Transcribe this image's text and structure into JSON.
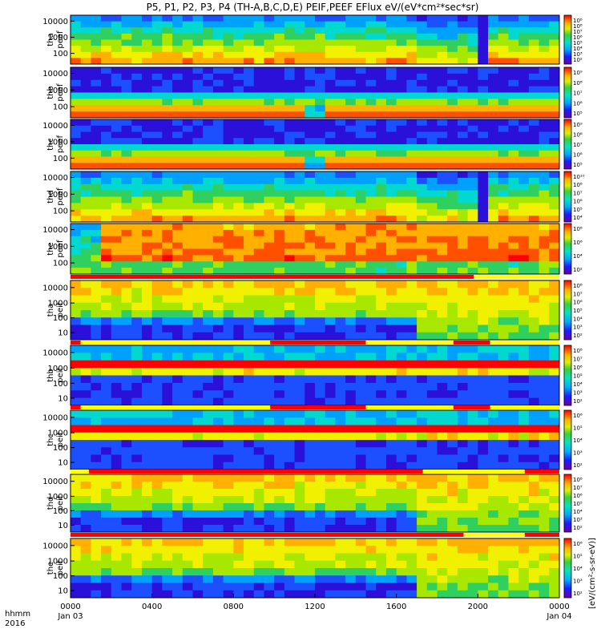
{
  "chart_data": {
    "type": "heatmap",
    "title": "P5, P1, P2, P3, P4 (TH-A,B,C,D,E) PEIF,PEEF EFlux eV/(eV*cm²*sec*sr)",
    "x_axis": {
      "label_line1": "hhmm",
      "label_line2": "2016",
      "ticks": [
        "0000",
        "0400",
        "0800",
        "1200",
        "1600",
        "2000",
        "0000"
      ],
      "tick_hours": [
        0,
        4,
        8,
        12,
        16,
        20,
        24
      ],
      "date_labels": [
        "Jan 03",
        "Jan 04"
      ],
      "range_hours": [
        0,
        24
      ]
    },
    "colorbar_label": "[eV/(cm²-s-sr-eV)]",
    "panels": [
      {
        "ylabel": [
          "tha",
          "peef"
        ],
        "yticks": [
          "10000",
          "1000",
          "100"
        ],
        "cbar_ticks": [
          "10⁸",
          "10⁸",
          "10⁷",
          "10⁶",
          "10⁵",
          "10⁴",
          "10³",
          "10²"
        ],
        "kind": "electron",
        "has_bar_below": false
      },
      {
        "ylabel": [
          "thb",
          "peef"
        ],
        "yticks": [
          "10000",
          "1000",
          "100"
        ],
        "cbar_ticks": [
          "10⁹",
          "10⁸",
          "10⁷",
          "10⁶",
          "10⁵"
        ],
        "kind": "electron_cold",
        "has_bar_below": false
      },
      {
        "ylabel": [
          "thc",
          "peef"
        ],
        "yticks": [
          "10000",
          "1000",
          "100"
        ],
        "cbar_ticks": [
          "10⁹",
          "10⁸",
          "10⁷",
          "10⁶",
          "10⁵"
        ],
        "kind": "electron_cold",
        "has_bar_below": false
      },
      {
        "ylabel": [
          "thd",
          "peef"
        ],
        "yticks": [
          "10000",
          "1000",
          "100"
        ],
        "cbar_ticks": [
          "10¹⁰",
          "10⁸",
          "10⁷",
          "10⁶",
          "10⁵",
          "10⁴"
        ],
        "kind": "electron",
        "has_bar_below": false
      },
      {
        "ylabel": [
          "the",
          "peef"
        ],
        "yticks": [
          "10000",
          "1000",
          "100"
        ],
        "cbar_ticks": [
          "10⁸",
          "10⁶",
          "10⁴",
          "10²"
        ],
        "kind": "electron_hot",
        "has_bar_below": true
      },
      {
        "ylabel": [
          "tha",
          "peif"
        ],
        "yticks": [
          "10000",
          "1000",
          "100",
          "10"
        ],
        "cbar_ticks": [
          "10⁸",
          "10⁷",
          "10⁶",
          "10⁵",
          "10⁴",
          "10³",
          "10²"
        ],
        "kind": "ion",
        "has_bar_below": true
      },
      {
        "ylabel": [
          "thb",
          "peif"
        ],
        "yticks": [
          "10000",
          "1000",
          "100",
          "10"
        ],
        "cbar_ticks": [
          "10⁸",
          "10⁷",
          "10⁶",
          "10⁵",
          "10⁴",
          "10³",
          "10²"
        ],
        "kind": "ion_band",
        "has_bar_below": true
      },
      {
        "ylabel": [
          "thc",
          "peif"
        ],
        "yticks": [
          "10000",
          "1000",
          "100",
          "10"
        ],
        "cbar_ticks": [
          "10⁶",
          "10⁵",
          "10⁴",
          "10³",
          "10²"
        ],
        "kind": "ion_band",
        "has_bar_below": true
      },
      {
        "ylabel": [
          "thd",
          "peif"
        ],
        "yticks": [
          "10000",
          "1000",
          "100",
          "10"
        ],
        "cbar_ticks": [
          "10⁸",
          "10⁷",
          "10⁶",
          "10⁵",
          "10⁴",
          "10³",
          "10²"
        ],
        "kind": "ion",
        "has_bar_below": true
      },
      {
        "ylabel": [
          "the",
          "peif"
        ],
        "yticks": [
          "10000",
          "1000",
          "100",
          "10"
        ],
        "cbar_ticks": [
          "10⁶",
          "10⁵",
          "10⁴",
          "10³",
          "10²"
        ],
        "kind": "ion",
        "has_bar_below": false
      }
    ],
    "mode_bars": [
      {
        "segments": [
          [
            0,
            19.8,
            "#ff0000"
          ],
          [
            19.8,
            24,
            "#ffff00"
          ]
        ]
      },
      {
        "segments": [
          [
            0,
            0.5,
            "#ff0000"
          ],
          [
            0.5,
            9.8,
            "#ffff00"
          ],
          [
            9.8,
            14.5,
            "#ff0000"
          ],
          [
            14.5,
            18.8,
            "#ffff00"
          ],
          [
            18.8,
            20.6,
            "#ff0000"
          ],
          [
            20.6,
            24,
            "#ffff00"
          ]
        ]
      },
      {
        "segments": [
          [
            0,
            0.5,
            "#ff0000"
          ],
          [
            0.5,
            9.8,
            "#ffff00"
          ],
          [
            9.8,
            14.5,
            "#ff0000"
          ],
          [
            14.5,
            18.8,
            "#ffff00"
          ],
          [
            18.8,
            20.6,
            "#ff0000"
          ],
          [
            20.6,
            24,
            "#ffff00"
          ]
        ]
      },
      {
        "segments": [
          [
            0,
            0.9,
            "#ffff00"
          ],
          [
            0.9,
            17.3,
            "#ff0000"
          ],
          [
            17.3,
            22.3,
            "#ffff00"
          ],
          [
            22.3,
            24,
            "#ff0000"
          ]
        ]
      },
      {
        "segments": [
          [
            0,
            19.3,
            "#ff0000"
          ],
          [
            19.3,
            22.3,
            "#ffff00"
          ],
          [
            22.3,
            24,
            "#ff0000"
          ]
        ]
      }
    ]
  }
}
